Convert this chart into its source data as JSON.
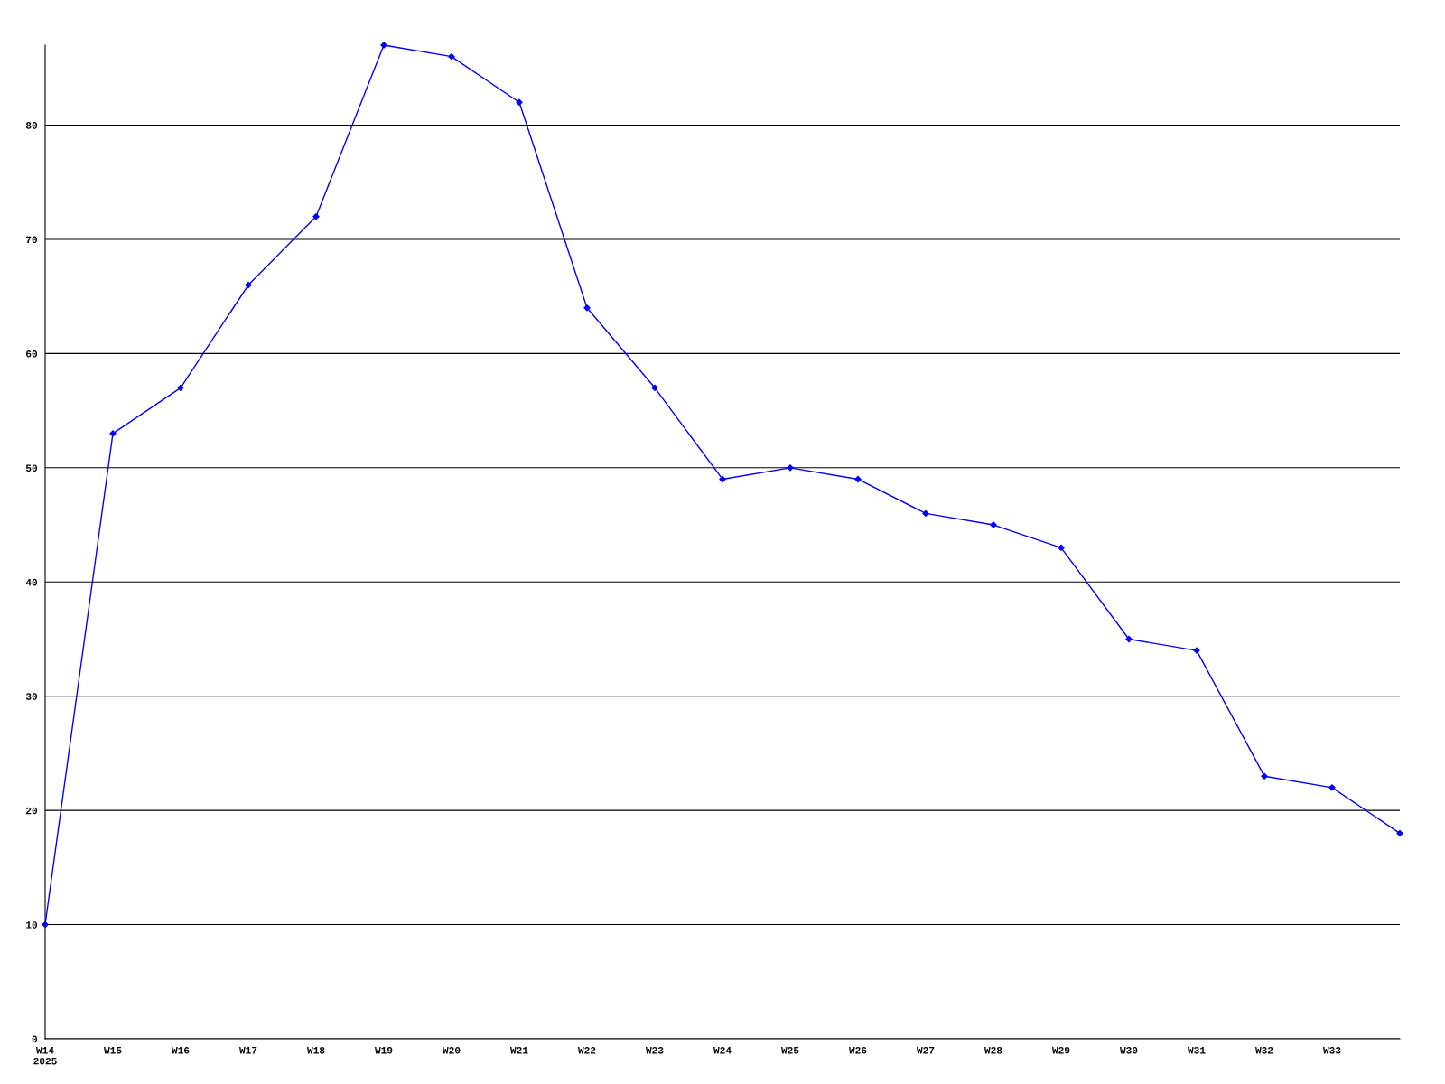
{
  "chart_data": {
    "type": "line",
    "categories": [
      "W14\n2025",
      "W15",
      "W16",
      "W17",
      "W18",
      "W19",
      "W20",
      "W21",
      "W22",
      "W23",
      "W24",
      "W25",
      "W26",
      "W27",
      "W28",
      "W29",
      "W30",
      "W31",
      "W32",
      "W33",
      null
    ],
    "series": [
      {
        "color": "#0000ff",
        "values": [
          10,
          53,
          57,
          66,
          72,
          87,
          86,
          82,
          64,
          57,
          49,
          50,
          49,
          46,
          45,
          43,
          35,
          34,
          23,
          22,
          18
        ]
      }
    ],
    "ylim": [
      0,
      87
    ],
    "yticks": [
      0,
      10,
      20,
      30,
      40,
      50,
      60,
      70,
      80
    ],
    "grid": "y",
    "marker": "diamond",
    "line_style": "solid"
  }
}
